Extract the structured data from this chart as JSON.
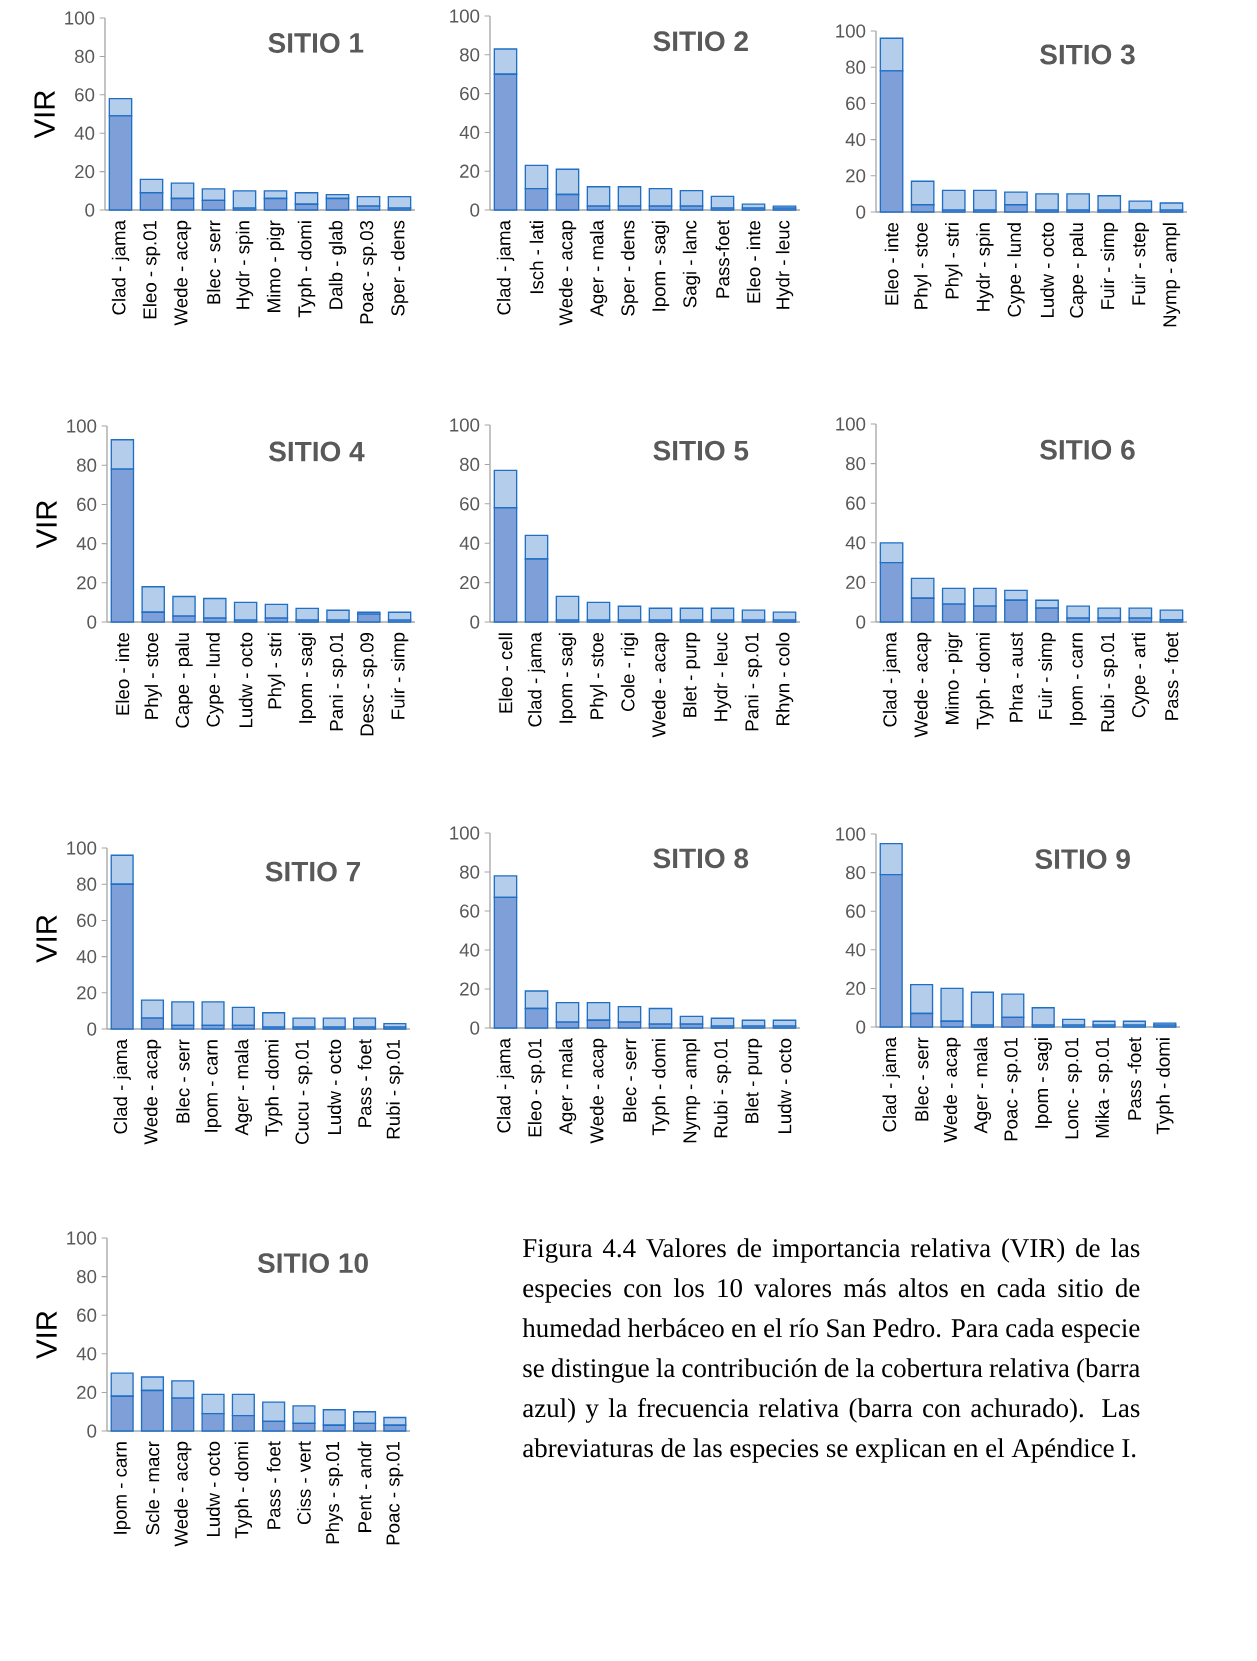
{
  "chart_data": [
    {
      "type": "bar",
      "stacked": true,
      "title": "SITIO 1",
      "ylabel": "VIR",
      "categories": [
        "Clad - jama",
        "Eleo - sp.01",
        "Wede - acap",
        "Blec - serr",
        "Hydr - spin",
        "Mimo - pigr",
        "Typh - domi",
        "Dalb - glab",
        "Poac - sp.03",
        "Sper - dens"
      ],
      "series": [
        {
          "color": "#7f9fd8",
          "values": [
            49,
            9,
            6,
            5,
            1,
            6,
            3,
            6,
            2,
            1
          ]
        },
        {
          "color": "#b4cdeb",
          "values": [
            9,
            7,
            8,
            6,
            9,
            4,
            6,
            2,
            5,
            6
          ]
        }
      ],
      "ylim": [
        0,
        100
      ],
      "yticks": [
        0,
        20,
        40,
        60,
        80,
        100
      ]
    },
    {
      "type": "bar",
      "stacked": true,
      "title": "SITIO 2",
      "categories": [
        "Clad - jama",
        "Isch - lati",
        "Wede - acap",
        "Ager - mala",
        "Sper - dens",
        "Ipom - sagi",
        "Sagi - lanc",
        "Pass-foet",
        "Eleo - inte",
        "Hydr - leuc"
      ],
      "series": [
        {
          "color": "#7f9fd8",
          "values": [
            70,
            11,
            8,
            2,
            2,
            2,
            2,
            1,
            1,
            1
          ]
        },
        {
          "color": "#b4cdeb",
          "values": [
            13,
            12,
            13,
            10,
            10,
            9,
            8,
            6,
            2,
            1
          ]
        }
      ],
      "ylim": [
        0,
        100
      ],
      "yticks": [
        0,
        20,
        40,
        60,
        80,
        100
      ]
    },
    {
      "type": "bar",
      "stacked": true,
      "title": "SITIO 3",
      "categories": [
        "Eleo - inte",
        "Phyl - stoe",
        "Phyl - stri",
        "Hydr - spin",
        "Cype - lund",
        "Ludw - octo",
        "Cape - palu",
        "Fuir - simp",
        "Fuir - step",
        "Nymp - ampl"
      ],
      "series": [
        {
          "color": "#7f9fd8",
          "values": [
            78,
            4,
            1,
            1,
            4,
            1,
            1,
            1,
            1,
            1
          ]
        },
        {
          "color": "#b4cdeb",
          "values": [
            18,
            13,
            11,
            11,
            7,
            9,
            9,
            8,
            5,
            4
          ]
        }
      ],
      "ylim": [
        0,
        100
      ],
      "yticks": [
        0,
        20,
        40,
        60,
        80,
        100
      ]
    },
    {
      "type": "bar",
      "stacked": true,
      "title": "SITIO 4",
      "ylabel": "VIR",
      "categories": [
        "Eleo - inte",
        "Phyl - stoe",
        "Cape - palu",
        "Cype - lund",
        "Ludw - octo",
        "Phyl - stri",
        "Ipom - sagi",
        "Pani - sp.01",
        "Desc - sp.09",
        "Fuir - simp"
      ],
      "series": [
        {
          "color": "#7f9fd8",
          "values": [
            78,
            5,
            3,
            2,
            1,
            2,
            1,
            1,
            4,
            1
          ]
        },
        {
          "color": "#b4cdeb",
          "values": [
            15,
            13,
            10,
            10,
            9,
            7,
            6,
            5,
            1,
            4
          ]
        }
      ],
      "ylim": [
        0,
        100
      ],
      "yticks": [
        0,
        20,
        40,
        60,
        80,
        100
      ]
    },
    {
      "type": "bar",
      "stacked": true,
      "title": "SITIO 5",
      "categories": [
        "Eleo - cell",
        "Clad - jama",
        "Ipom - sagi",
        "Phyl - stoe",
        "Cole - rigi",
        "Wede - acap",
        "Blet - purp",
        "Hydr - leuc",
        "Pani - sp.01",
        "Rhyn - colo"
      ],
      "series": [
        {
          "color": "#7f9fd8",
          "values": [
            58,
            32,
            1,
            1,
            1,
            1,
            1,
            1,
            1,
            1
          ]
        },
        {
          "color": "#b4cdeb",
          "values": [
            19,
            12,
            12,
            9,
            7,
            6,
            6,
            6,
            5,
            4
          ]
        }
      ],
      "ylim": [
        0,
        100
      ],
      "yticks": [
        0,
        20,
        40,
        60,
        80,
        100
      ]
    },
    {
      "type": "bar",
      "stacked": true,
      "title": "SITIO 6",
      "categories": [
        "Clad - jama",
        "Wede - acap",
        "Mimo - pigr",
        "Typh - domi",
        "Phra - aust",
        "Fuir - simp",
        "Ipom - carn",
        "Rubi - sp.01",
        "Cype - arti",
        "Pass - foet"
      ],
      "series": [
        {
          "color": "#7f9fd8",
          "values": [
            30,
            12,
            9,
            8,
            11,
            7,
            2,
            2,
            2,
            1
          ]
        },
        {
          "color": "#b4cdeb",
          "values": [
            10,
            10,
            8,
            9,
            5,
            4,
            6,
            5,
            5,
            5
          ]
        }
      ],
      "ylim": [
        0,
        100
      ],
      "yticks": [
        0,
        20,
        40,
        60,
        80,
        100
      ]
    },
    {
      "type": "bar",
      "stacked": true,
      "title": "SITIO 7",
      "ylabel": "VIR",
      "categories": [
        "Clad - jama",
        "Wede - acap",
        "Blec - serr",
        "Ipom - carn",
        "Ager - mala",
        "Typh - domi",
        "Cucu - sp.01",
        "Ludw - octo",
        "Pass - foet",
        "Rubi - sp.01"
      ],
      "series": [
        {
          "color": "#7f9fd8",
          "values": [
            80,
            6,
            2,
            2,
            2,
            1,
            1,
            1,
            1,
            1
          ]
        },
        {
          "color": "#b4cdeb",
          "values": [
            16,
            10,
            13,
            13,
            10,
            8,
            5,
            5,
            5,
            2
          ]
        }
      ],
      "ylim": [
        0,
        100
      ],
      "yticks": [
        0,
        20,
        40,
        60,
        80,
        100
      ]
    },
    {
      "type": "bar",
      "stacked": true,
      "title": "SITIO 8",
      "categories": [
        "Clad - jama",
        "Eleo - sp.01",
        "Ager - mala",
        "Wede - acap",
        "Blec - serr",
        "Typh - domi",
        "Nymp - ampl",
        "Rubi - sp.01",
        "Blet - purp",
        "Ludw - octo"
      ],
      "series": [
        {
          "color": "#7f9fd8",
          "values": [
            67,
            10,
            3,
            4,
            3,
            2,
            2,
            1,
            1,
            1
          ]
        },
        {
          "color": "#b4cdeb",
          "values": [
            11,
            9,
            10,
            9,
            8,
            8,
            4,
            4,
            3,
            3
          ]
        }
      ],
      "ylim": [
        0,
        100
      ],
      "yticks": [
        0,
        20,
        40,
        60,
        80,
        100
      ]
    },
    {
      "type": "bar",
      "stacked": true,
      "title": "SITIO 9",
      "categories": [
        "Clad - jama",
        "Blec - serr",
        "Wede - acap",
        "Ager - mala",
        "Poac - sp.01",
        "Ipom - sagi",
        "Lonc - sp.01",
        "Mika - sp.01",
        "Pass -foet",
        "Typh - domi"
      ],
      "series": [
        {
          "color": "#7f9fd8",
          "values": [
            79,
            7,
            3,
            1,
            5,
            1,
            1,
            1,
            1,
            1
          ]
        },
        {
          "color": "#b4cdeb",
          "values": [
            16,
            15,
            17,
            17,
            12,
            9,
            3,
            2,
            2,
            1
          ]
        }
      ],
      "ylim": [
        0,
        100
      ],
      "yticks": [
        0,
        20,
        40,
        60,
        80,
        100
      ]
    },
    {
      "type": "bar",
      "stacked": true,
      "title": "SITIO 10",
      "ylabel": "VIR",
      "categories": [
        "Ipom - carn",
        "Scle - macr",
        "Wede - acap",
        "Ludw - octo",
        "Typh - domi",
        "Pass - foet",
        "Ciss - vert",
        "Phys - sp.01",
        "Pent - andr",
        "Poac - sp.01"
      ],
      "series": [
        {
          "color": "#7f9fd8",
          "values": [
            18,
            21,
            17,
            9,
            8,
            5,
            4,
            3,
            4,
            3
          ]
        },
        {
          "color": "#b4cdeb",
          "values": [
            12,
            7,
            9,
            10,
            11,
            10,
            9,
            8,
            6,
            4
          ]
        }
      ],
      "ylim": [
        0,
        100
      ],
      "yticks": [
        0,
        20,
        40,
        60,
        80,
        100
      ]
    },
    {
      "type": "other",
      "annotations": [
        "Figura 4.4 Valores de importancia relativa (VIR) de las especies con los 10 valores más altos en cada sitio de humedad herbáceo en el río San Pedro. Para cada especie se distingue la contribución de la cobertura relativa (barra azul) y la frecuencia relativa (barra con achurado). Las abreviaturas de las especies se explican en el Apéndice I."
      ]
    }
  ]
}
